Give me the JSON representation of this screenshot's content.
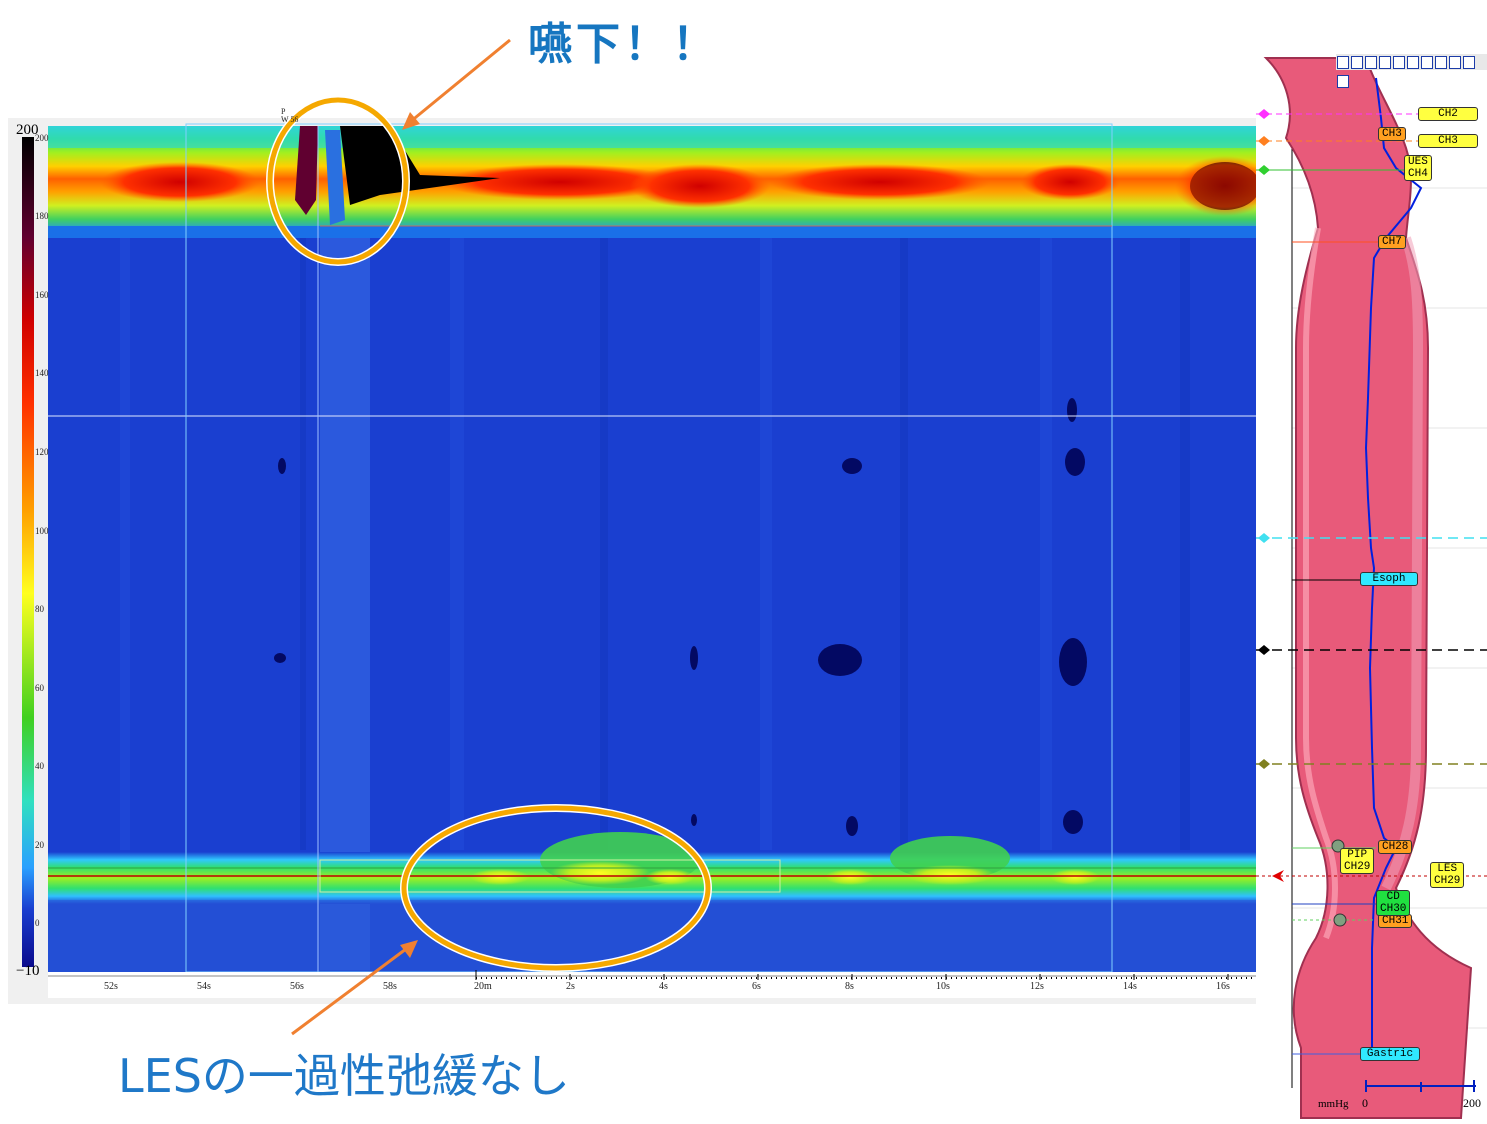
{
  "callouts": {
    "swallow": "嚥下！！",
    "les": "LESの一過性弛緩なし"
  },
  "pressure_scale": {
    "max_label": "200",
    "min_label": "−10",
    "ticks": [
      "200",
      "180",
      "160",
      "140",
      "120",
      "100",
      "80",
      "60",
      "40",
      "20",
      "0"
    ]
  },
  "time_axis": {
    "ticks": [
      "52s",
      "54s",
      "56s",
      "58s",
      "20m",
      "2s",
      "4s",
      "6s",
      "8s",
      "10s",
      "12s",
      "14s",
      "16s"
    ]
  },
  "event_marker": "P\nW 56",
  "colors": {
    "background": "#1a3fd0",
    "accent_circle": "#f5a800",
    "arrow": "#f08030",
    "callout_text": "#1676c0"
  },
  "anatomy_panel": {
    "channels": [
      {
        "label": "CH2",
        "style": "yellow"
      },
      {
        "label": "CH3",
        "style": "orange"
      },
      {
        "label": "CH3",
        "style": "yellow"
      },
      {
        "label": "UES\nCH4",
        "style": "yellow"
      },
      {
        "label": "CH7",
        "style": "orange"
      },
      {
        "label": "Esoph",
        "style": "cyan"
      },
      {
        "label": "CH28",
        "style": "orange"
      },
      {
        "label": "PIP\nCH29",
        "style": "yellow"
      },
      {
        "label": "LES\nCH29",
        "style": "yellow"
      },
      {
        "label": "CD\nCH30",
        "style": "green"
      },
      {
        "label": "CH31",
        "style": "orange"
      },
      {
        "label": "Gastric",
        "style": "cyan"
      }
    ],
    "units": "mmHg",
    "x_min": "0",
    "x_max": "200"
  }
}
